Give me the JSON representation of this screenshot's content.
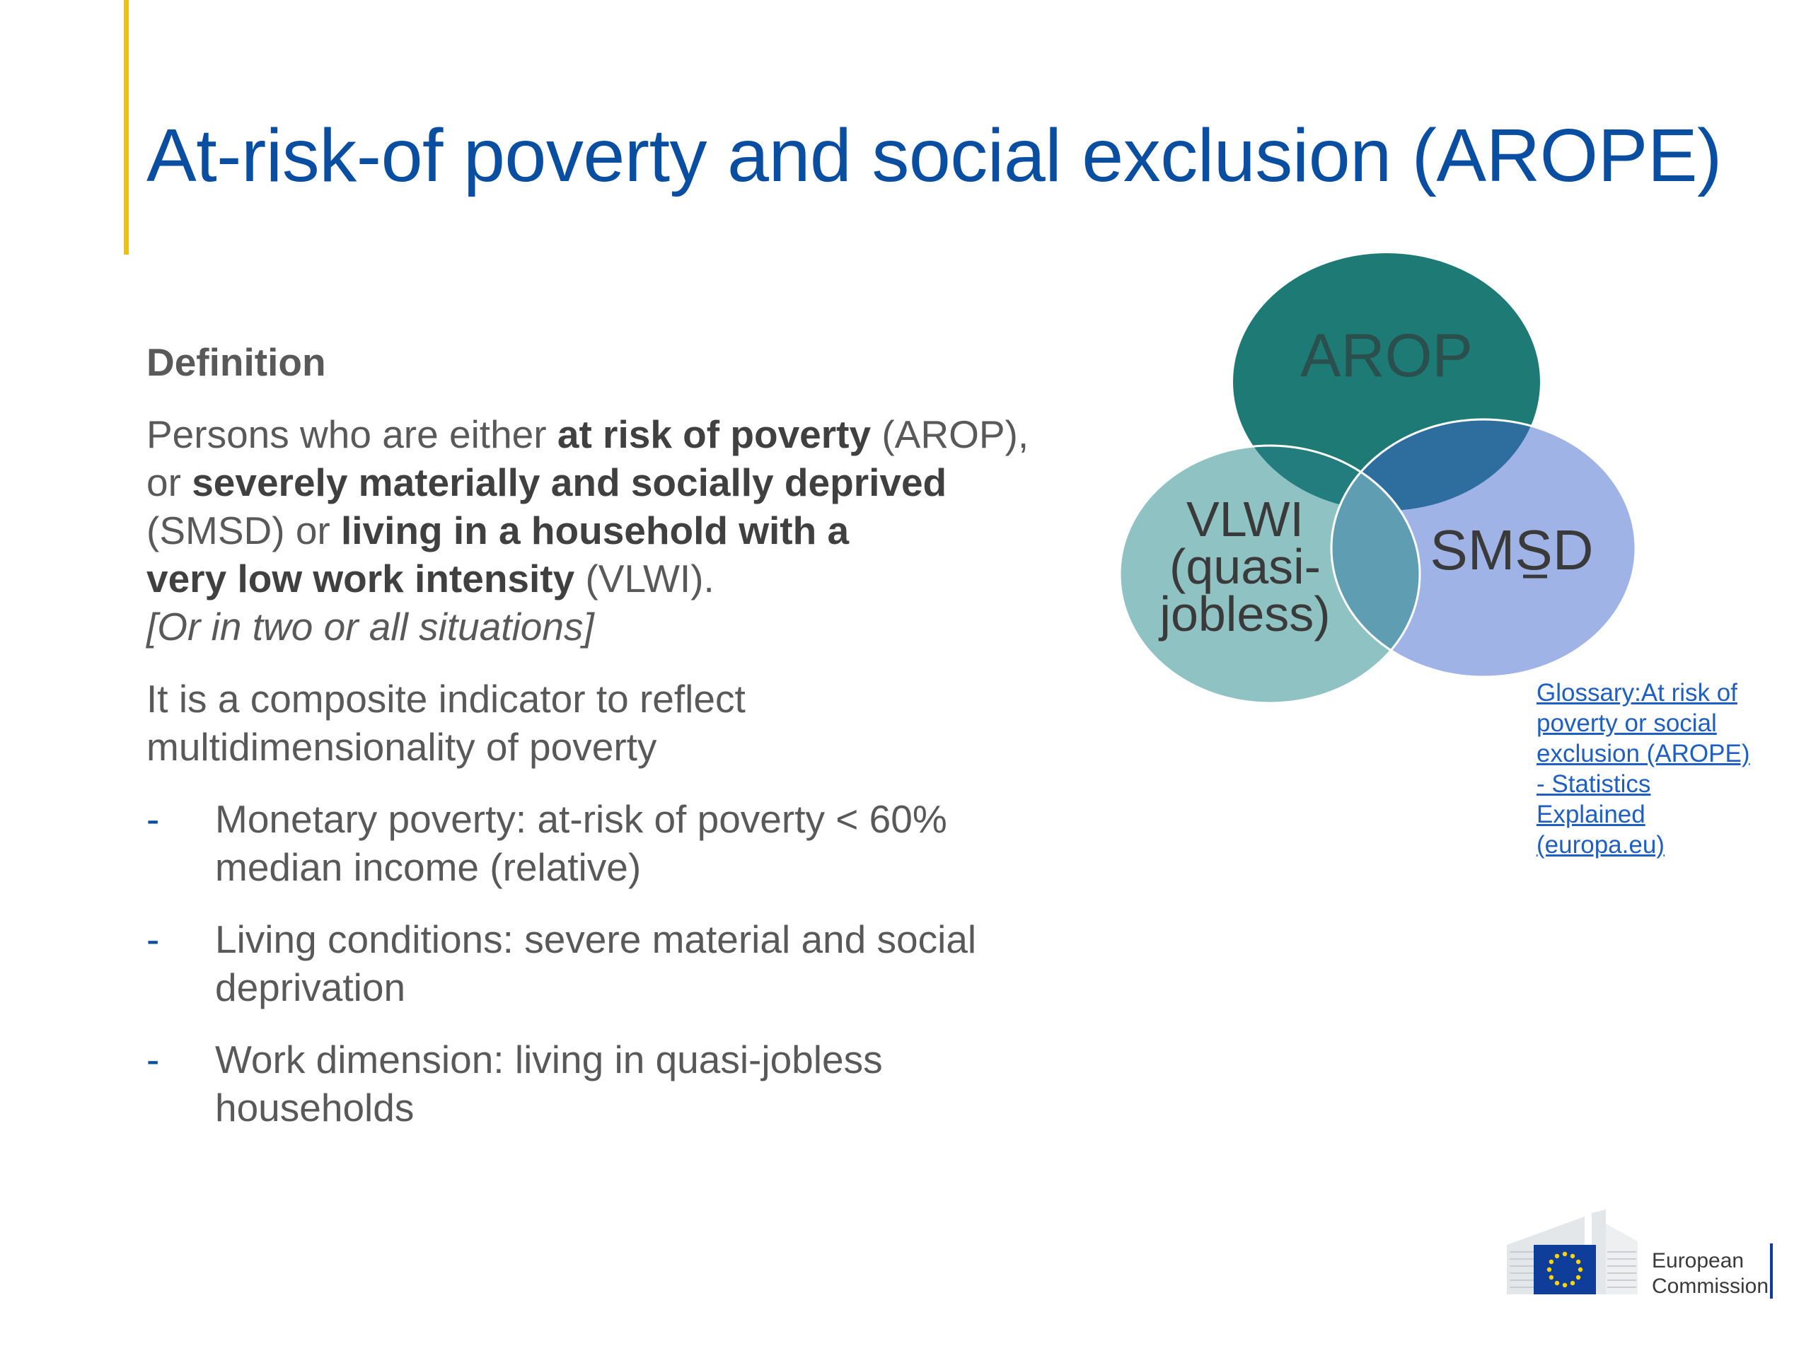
{
  "slide": {
    "title": "At-risk-of poverty and social exclusion (AROPE)",
    "definition_heading": "Definition",
    "definition": {
      "t1": "Persons who are either ",
      "b1": "at risk of poverty",
      "t2": " (AROP),",
      "t3": "or ",
      "b2": "severely materially and socially deprived",
      "t4": "(SMSD) or ",
      "b3": "living in a household with a",
      "b4": "very low work intensity",
      "t5": " (VLWI).",
      "italic": "[Or in two or all situations]"
    },
    "composite_line1": "It is a composite indicator to reflect",
    "composite_line2": "multidimensionality of poverty",
    "bullet_marker": "-",
    "bullets": [
      {
        "line1": "Monetary poverty: at-risk of poverty < 60%",
        "line2": "median income (relative)"
      },
      {
        "line1": "Living conditions: severe material and social",
        "line2": "deprivation"
      },
      {
        "line1": "Work dimension: living in quasi-jobless",
        "line2": "households"
      }
    ]
  },
  "venn": {
    "arop_label": "AROP",
    "smsd_label": "SMSD",
    "vlwi_line1": "VLWI",
    "vlwi_line2": "(quasi-",
    "vlwi_line3": "jobless)",
    "colors": {
      "arop": "#1D7A75",
      "smsd": "#9FB3E6",
      "vlwi": "#8FC2C2",
      "arop_smsd_overlap": "#2E6E9F",
      "vlwi_smsd_overlap": "#5F9EB2",
      "arop_vlwi_overlap": "#237C7D",
      "label_dark": "#2A4F4C",
      "label_text": "#3A3A3A"
    }
  },
  "glossary_link": {
    "line1": "Glossary:At risk of",
    "line2": "poverty or social",
    "line3": "exclusion (AROPE)",
    "line4": "- Statistics",
    "line5": "Explained",
    "line6": "(europa.eu)"
  },
  "logo": {
    "line1": "European",
    "line2": "Commission",
    "icon": "eu-flag-icon"
  }
}
